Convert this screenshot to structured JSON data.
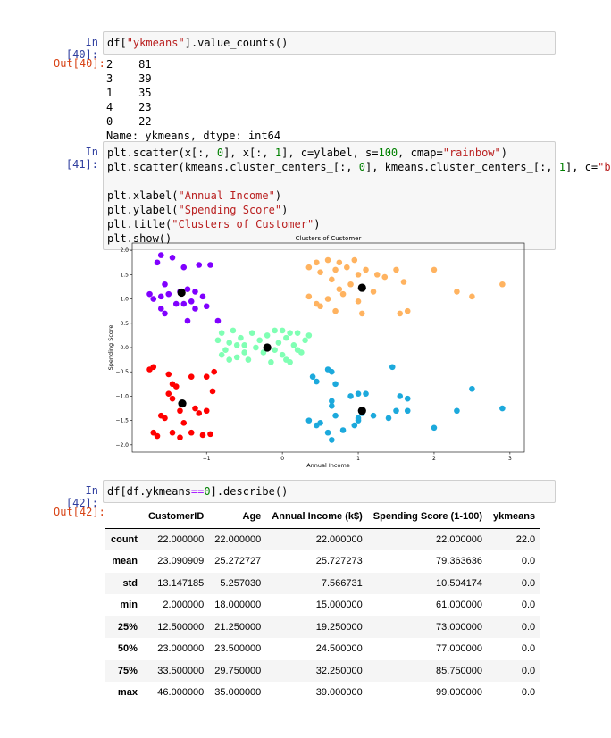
{
  "cells": [
    {
      "prompt_in": "In [40]:",
      "code": [
        "df[\"ykmeans\"].value_counts()"
      ],
      "prompt_out": "Out[40]:",
      "output_lines": [
        "2    81",
        "3    39",
        "1    35",
        "4    23",
        "0    22",
        "Name: ykmeans, dtype: int64"
      ]
    },
    {
      "prompt_in": "In [41]:",
      "code": [
        "plt.scatter(x[:, 0], x[:, 1], c=ylabel, s=100, cmap=\"rainbow\")",
        "plt.scatter(kmeans.cluster_centers_[:, 0], kmeans.cluster_centers_[:, 1], c=\"b",
        "",
        "plt.xlabel(\"Annual Income\")",
        "plt.ylabel(\"Spending Score\")",
        "plt.title(\"Clusters of Customer\")",
        "plt.show()"
      ]
    },
    {
      "prompt_in": "In [42]:",
      "code": [
        "df[df.ykmeans==0].describe()"
      ],
      "prompt_out": "Out[42]:",
      "table": {
        "columns": [
          "CustomerID",
          "Age",
          "Annual Income (k$)",
          "Spending Score (1-100)",
          "ykmeans"
        ],
        "rows": [
          {
            "label": "count",
            "values": [
              "22.000000",
              "22.000000",
              "22.000000",
              "22.000000",
              "22.0"
            ]
          },
          {
            "label": "mean",
            "values": [
              "23.090909",
              "25.272727",
              "25.727273",
              "79.363636",
              "0.0"
            ]
          },
          {
            "label": "std",
            "values": [
              "13.147185",
              "5.257030",
              "7.566731",
              "10.504174",
              "0.0"
            ]
          },
          {
            "label": "min",
            "values": [
              "2.000000",
              "18.000000",
              "15.000000",
              "61.000000",
              "0.0"
            ]
          },
          {
            "label": "25%",
            "values": [
              "12.500000",
              "21.250000",
              "19.250000",
              "73.000000",
              "0.0"
            ]
          },
          {
            "label": "50%",
            "values": [
              "23.000000",
              "23.500000",
              "24.500000",
              "77.000000",
              "0.0"
            ]
          },
          {
            "label": "75%",
            "values": [
              "33.500000",
              "29.750000",
              "32.250000",
              "85.750000",
              "0.0"
            ]
          },
          {
            "label": "max",
            "values": [
              "46.000000",
              "35.000000",
              "39.000000",
              "99.000000",
              "0.0"
            ]
          }
        ]
      }
    }
  ],
  "chart_data": {
    "type": "scatter",
    "title": "Clusters of Customer",
    "x_label": "Annual Income",
    "y_label": "Spending Score",
    "xlim": [
      -1.98,
      3.19
    ],
    "ylim": [
      -2.15,
      2.15
    ],
    "xticks": [
      {
        "value": -1,
        "label": "−1"
      },
      0,
      1,
      2,
      3
    ],
    "yticks": [
      {
        "value": -2,
        "label": "−2.0"
      },
      {
        "value": -1.5,
        "label": "−1.5"
      },
      {
        "value": -1,
        "label": "−1.0"
      },
      {
        "value": -0.5,
        "label": "−0.5"
      },
      {
        "value": 0,
        "label": "0.0"
      },
      0.5,
      {
        "value": 1,
        "label": "1.0"
      },
      1.5,
      {
        "value": 2,
        "label": "2.0"
      }
    ],
    "series": [
      {
        "color": "#8000ff",
        "x": [
          -1.6,
          -1.65,
          -1.45,
          -1.3,
          -1.1,
          -0.95,
          -1.75,
          -1.7,
          -1.6,
          -1.55,
          -1.5,
          -1.35,
          -1.25,
          -1.15,
          -1.4,
          -1.3,
          -1.2,
          -1.05,
          -1.55,
          -1.6,
          -1.25,
          -0.85,
          -1.0,
          -1.15
        ],
        "y": [
          1.9,
          1.75,
          1.85,
          1.65,
          1.7,
          1.7,
          1.1,
          1.0,
          1.05,
          1.3,
          1.1,
          1.15,
          1.2,
          1.15,
          0.9,
          0.9,
          0.95,
          1.05,
          0.7,
          0.8,
          0.55,
          0.55,
          0.85,
          0.8
        ]
      },
      {
        "color": "#ff0000",
        "x": [
          -1.75,
          -1.7,
          -1.5,
          -1.45,
          -1.4,
          -1.2,
          -1.0,
          -0.9,
          -0.92,
          -1.5,
          -1.45,
          -1.15,
          -1.6,
          -1.55,
          -1.35,
          -1.3,
          -1.1,
          -1.0,
          -1.7,
          -1.65,
          -1.45,
          -1.35,
          -1.2,
          -1.05,
          -0.95
        ],
        "y": [
          -0.45,
          -0.4,
          -0.55,
          -0.75,
          -0.8,
          -0.6,
          -0.6,
          -0.5,
          -0.9,
          -0.95,
          -1.05,
          -1.25,
          -1.4,
          -1.45,
          -1.3,
          -1.55,
          -1.35,
          -1.3,
          -1.75,
          -1.82,
          -1.75,
          -1.85,
          -1.75,
          -1.8,
          -1.78
        ]
      },
      {
        "color": "#80ffb4",
        "x": [
          -0.85,
          -0.8,
          -0.75,
          -0.7,
          -0.65,
          -0.6,
          -0.55,
          -0.5,
          -0.45,
          -0.4,
          -0.35,
          -0.3,
          -0.25,
          -0.5,
          -0.6,
          -0.7,
          -0.2,
          -0.15,
          -0.1,
          -0.05,
          0.0,
          0.05,
          0.1,
          0.15,
          0.2,
          0.25,
          0.3,
          0.35,
          -0.1,
          0.05,
          0.2,
          -0.8,
          0.1,
          0.0
        ],
        "y": [
          0.15,
          0.3,
          -0.05,
          0.1,
          0.35,
          -0.2,
          0.2,
          0.05,
          -0.25,
          0.3,
          0.0,
          0.15,
          -0.1,
          -0.1,
          0.05,
          -0.25,
          0.25,
          -0.3,
          0.35,
          0.1,
          -0.15,
          0.2,
          -0.3,
          0.05,
          0.3,
          -0.1,
          0.15,
          0.25,
          -0.05,
          -0.25,
          -0.05,
          -0.15,
          0.3,
          0.35
        ]
      },
      {
        "color": "#ffb360",
        "x": [
          0.35,
          0.45,
          0.5,
          0.6,
          0.7,
          0.75,
          0.85,
          0.95,
          1.0,
          1.1,
          1.25,
          1.35,
          1.5,
          1.6,
          2.0,
          0.35,
          0.45,
          0.5,
          0.6,
          0.7,
          0.8,
          0.9,
          1.0,
          1.05,
          1.2,
          1.55,
          1.65,
          2.3,
          2.5,
          2.9,
          0.65,
          0.75
        ],
        "y": [
          1.65,
          1.75,
          1.55,
          1.8,
          1.6,
          1.75,
          1.65,
          1.8,
          1.5,
          1.6,
          1.5,
          1.45,
          1.6,
          1.35,
          1.6,
          1.05,
          0.9,
          0.85,
          1.0,
          0.75,
          1.1,
          1.3,
          0.95,
          0.7,
          1.15,
          0.7,
          0.75,
          1.15,
          1.05,
          1.3,
          1.4,
          1.2
        ]
      },
      {
        "color": "#1ca9dc",
        "x": [
          0.4,
          0.45,
          0.6,
          0.65,
          0.7,
          0.35,
          0.45,
          0.5,
          0.6,
          0.65,
          0.8,
          0.7,
          0.65,
          0.65,
          0.9,
          0.95,
          1.0,
          1.05,
          1.0,
          1.0,
          1.2,
          1.4,
          1.45,
          1.5,
          1.55,
          1.65,
          1.65,
          2.0,
          2.3,
          2.5,
          2.9,
          1.1
        ],
        "y": [
          -0.6,
          -0.7,
          -0.45,
          -0.5,
          -0.75,
          -1.5,
          -1.6,
          -1.55,
          -1.75,
          -1.9,
          -1.7,
          -1.4,
          -1.1,
          -1.2,
          -1.0,
          -1.6,
          -1.45,
          -1.35,
          -0.95,
          -1.5,
          -1.4,
          -1.45,
          -0.4,
          -1.3,
          -1.0,
          -1.05,
          -1.3,
          -1.65,
          -1.3,
          -0.85,
          -1.25,
          -0.95
        ]
      },
      {
        "color": "#000000",
        "x": [
          -1.33,
          -0.2,
          1.05,
          -1.32,
          1.05
        ],
        "y": [
          1.13,
          0.0,
          1.23,
          -1.15,
          -1.3
        ]
      }
    ]
  }
}
